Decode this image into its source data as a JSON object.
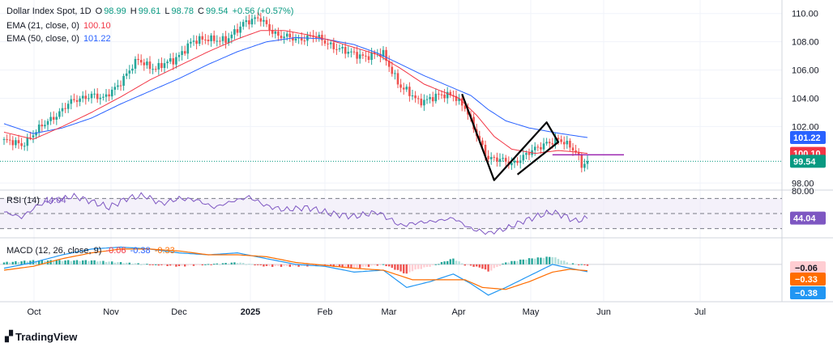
{
  "colors": {
    "up": "#26a69a",
    "down": "#ef5350",
    "ema21": "#f23645",
    "ema50": "#2962ff",
    "rsi": "#7e57c2",
    "macd": "#2196f3",
    "signal": "#ff6d00",
    "hist_up": "#b2dfdb",
    "hist_up_strong": "#26a69a",
    "hist_down": "#ffcdd2",
    "hist_down_strong": "#ef5350",
    "grid": "#f0f3fa",
    "text": "#131722",
    "pattern": "#000000",
    "level": "#9c27b0"
  },
  "legend": {
    "symbol": "Dollar Index Spot, 1D",
    "o_label": "O",
    "o": "98.99",
    "h_label": "H",
    "h": "99.61",
    "l_label": "L",
    "l": "98.78",
    "c_label": "C",
    "c": "99.54",
    "chg": "+0.56 (+0.57%)",
    "ema21_name": "EMA (21, close, 0)",
    "ema21_val": "100.10",
    "ema50_name": "EMA (50, close, 0)",
    "ema50_val": "101.22",
    "rsi_name": "RSI (14)",
    "rsi_val": "44.04",
    "macd_name": "MACD (12, 26, close, 9)",
    "macd_hist": "-0.06",
    "macd_line": "-0.38",
    "macd_signal": "-0.33"
  },
  "brand": "TradingView",
  "chart_data": [
    {
      "type": "candlestick",
      "title": "Dollar Index Spot, 1D",
      "ylim": [
        97.5,
        110.5
      ],
      "yticks": [
        "110.00",
        "108.00",
        "106.00",
        "104.00",
        "102.00",
        "98.00"
      ],
      "price_labels": [
        {
          "name": "EMA50",
          "value": "101.22",
          "color": "#2962ff"
        },
        {
          "name": "EMA21",
          "value": "100.10",
          "color": "#f23645"
        },
        {
          "name": "Close",
          "value": "99.54",
          "color": "#089981"
        }
      ],
      "months": [
        "Oct",
        "Nov",
        "Dec",
        "2025",
        "Feb",
        "Mar",
        "Apr",
        "May",
        "Jun",
        "Jul"
      ],
      "close_anchors": [
        [
          0,
          101.0
        ],
        [
          6,
          100.7
        ],
        [
          10,
          101.5
        ],
        [
          16,
          102.5
        ],
        [
          22,
          103.6
        ],
        [
          30,
          104.3
        ],
        [
          34,
          103.9
        ],
        [
          40,
          105.2
        ],
        [
          46,
          106.7
        ],
        [
          52,
          106.1
        ],
        [
          58,
          106.7
        ],
        [
          64,
          107.9
        ],
        [
          70,
          108.3
        ],
        [
          76,
          108.0
        ],
        [
          82,
          109.4
        ],
        [
          88,
          109.6
        ],
        [
          94,
          108.4
        ],
        [
          100,
          108.2
        ],
        [
          106,
          108.4
        ],
        [
          112,
          107.8
        ],
        [
          118,
          107.2
        ],
        [
          124,
          107.0
        ],
        [
          130,
          107.1
        ],
        [
          136,
          104.8
        ],
        [
          142,
          103.8
        ],
        [
          148,
          104.1
        ],
        [
          154,
          104.3
        ],
        [
          158,
          103.3
        ],
        [
          162,
          101.4
        ],
        [
          166,
          99.8
        ],
        [
          170,
          99.6
        ],
        [
          174,
          99.4
        ],
        [
          180,
          100.1
        ],
        [
          186,
          100.9
        ],
        [
          190,
          101.0
        ],
        [
          194,
          100.6
        ],
        [
          196,
          100.3
        ],
        [
          198,
          99.3
        ],
        [
          200,
          99.5
        ]
      ],
      "ema21_anchors": [
        [
          0,
          101.6
        ],
        [
          10,
          101.1
        ],
        [
          20,
          102.0
        ],
        [
          30,
          103.0
        ],
        [
          40,
          104.1
        ],
        [
          50,
          105.3
        ],
        [
          60,
          106.3
        ],
        [
          70,
          107.3
        ],
        [
          80,
          108.2
        ],
        [
          88,
          108.8
        ],
        [
          96,
          108.8
        ],
        [
          104,
          108.5
        ],
        [
          112,
          108.1
        ],
        [
          120,
          107.6
        ],
        [
          128,
          107.1
        ],
        [
          136,
          106.1
        ],
        [
          144,
          105.0
        ],
        [
          150,
          104.5
        ],
        [
          156,
          104.0
        ],
        [
          162,
          102.8
        ],
        [
          168,
          101.3
        ],
        [
          174,
          100.4
        ],
        [
          182,
          100.1
        ],
        [
          190,
          100.3
        ],
        [
          196,
          100.2
        ],
        [
          200,
          100.1
        ]
      ],
      "ema50_anchors": [
        [
          0,
          102.2
        ],
        [
          10,
          101.5
        ],
        [
          20,
          101.9
        ],
        [
          30,
          102.6
        ],
        [
          40,
          103.6
        ],
        [
          50,
          104.5
        ],
        [
          60,
          105.4
        ],
        [
          70,
          106.4
        ],
        [
          80,
          107.3
        ],
        [
          90,
          108.0
        ],
        [
          100,
          108.3
        ],
        [
          110,
          108.2
        ],
        [
          120,
          107.8
        ],
        [
          128,
          107.2
        ],
        [
          136,
          106.4
        ],
        [
          144,
          105.6
        ],
        [
          152,
          104.9
        ],
        [
          160,
          104.2
        ],
        [
          166,
          103.2
        ],
        [
          172,
          102.4
        ],
        [
          180,
          101.9
        ],
        [
          188,
          101.6
        ],
        [
          194,
          101.4
        ],
        [
          200,
          101.22
        ]
      ],
      "resistance_level": 100.0,
      "pattern_points": [
        [
          157,
          104.3
        ],
        [
          168,
          98.2
        ],
        [
          186,
          102.3
        ],
        [
          190,
          100.9
        ],
        [
          176,
          98.6
        ]
      ]
    },
    {
      "type": "line",
      "title": "RSI (14)",
      "ylim": [
        20,
        80
      ],
      "yticks": [
        "80.00"
      ],
      "bands": [
        30,
        50,
        70
      ],
      "last_value": "44.04",
      "anchors": [
        [
          0,
          52
        ],
        [
          6,
          45
        ],
        [
          12,
          62
        ],
        [
          18,
          68
        ],
        [
          24,
          73
        ],
        [
          30,
          66
        ],
        [
          36,
          58
        ],
        [
          42,
          70
        ],
        [
          48,
          74
        ],
        [
          54,
          63
        ],
        [
          60,
          70
        ],
        [
          66,
          68
        ],
        [
          72,
          58
        ],
        [
          78,
          66
        ],
        [
          84,
          72
        ],
        [
          90,
          60
        ],
        [
          96,
          55
        ],
        [
          104,
          58
        ],
        [
          112,
          50
        ],
        [
          120,
          46
        ],
        [
          128,
          52
        ],
        [
          136,
          34
        ],
        [
          142,
          38
        ],
        [
          148,
          40
        ],
        [
          154,
          44
        ],
        [
          160,
          30
        ],
        [
          166,
          24
        ],
        [
          172,
          30
        ],
        [
          178,
          40
        ],
        [
          184,
          48
        ],
        [
          188,
          52
        ],
        [
          192,
          47
        ],
        [
          196,
          40
        ],
        [
          200,
          44
        ]
      ]
    },
    {
      "type": "line",
      "title": "MACD (12, 26, close, 9)",
      "series": [
        {
          "name": "MACD",
          "color": "#2196f3",
          "anchors": [
            [
              0,
              -0.2
            ],
            [
              10,
              0.1
            ],
            [
              20,
              0.5
            ],
            [
              30,
              0.8
            ],
            [
              40,
              0.9
            ],
            [
              50,
              0.8
            ],
            [
              60,
              0.6
            ],
            [
              70,
              0.5
            ],
            [
              80,
              0.6
            ],
            [
              90,
              0.3
            ],
            [
              100,
              0.0
            ],
            [
              110,
              -0.1
            ],
            [
              120,
              -0.4
            ],
            [
              130,
              -0.3
            ],
            [
              138,
              -1.2
            ],
            [
              146,
              -0.9
            ],
            [
              154,
              -0.5
            ],
            [
              160,
              -1.0
            ],
            [
              166,
              -1.6
            ],
            [
              172,
              -1.2
            ],
            [
              180,
              -0.6
            ],
            [
              188,
              0.0
            ],
            [
              194,
              -0.2
            ],
            [
              200,
              -0.38
            ]
          ]
        },
        {
          "name": "Signal",
          "color": "#ff6d00",
          "anchors": [
            [
              0,
              -0.3
            ],
            [
              10,
              -0.1
            ],
            [
              20,
              0.3
            ],
            [
              30,
              0.6
            ],
            [
              40,
              0.8
            ],
            [
              50,
              0.8
            ],
            [
              60,
              0.7
            ],
            [
              70,
              0.5
            ],
            [
              80,
              0.5
            ],
            [
              90,
              0.4
            ],
            [
              100,
              0.1
            ],
            [
              110,
              -0.05
            ],
            [
              120,
              -0.2
            ],
            [
              130,
              -0.3
            ],
            [
              140,
              -0.8
            ],
            [
              150,
              -0.8
            ],
            [
              158,
              -0.8
            ],
            [
              164,
              -1.2
            ],
            [
              172,
              -1.3
            ],
            [
              180,
              -0.9
            ],
            [
              188,
              -0.4
            ],
            [
              194,
              -0.25
            ],
            [
              200,
              -0.33
            ]
          ]
        }
      ],
      "ylim": [
        -1.9,
        1.3
      ],
      "labels": [
        {
          "name": "Histogram",
          "value": "−0.06",
          "color": "#ffcdd2",
          "text": "#131722"
        },
        {
          "name": "Signal",
          "value": "−0.33",
          "color": "#ff6d00",
          "text": "#ffffff"
        },
        {
          "name": "MACD",
          "value": "−0.38",
          "color": "#2196f3",
          "text": "#ffffff"
        }
      ]
    }
  ]
}
